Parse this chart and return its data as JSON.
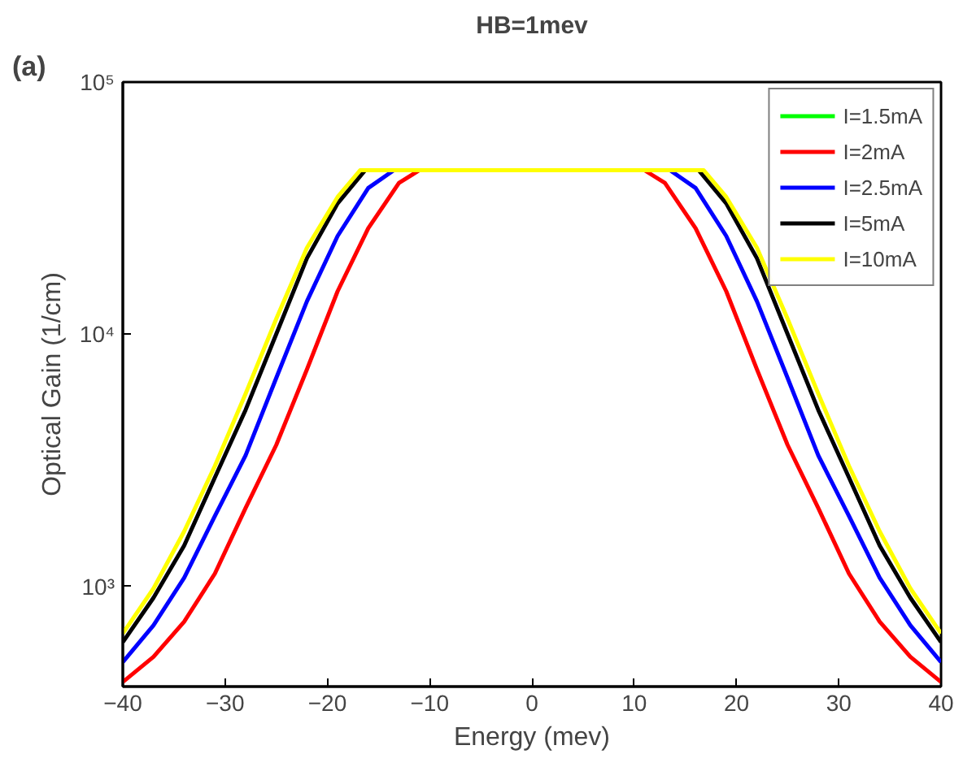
{
  "chart_data": {
    "type": "line",
    "title": "HB=1mev",
    "xlabel": "Energy (mev)",
    "ylabel": "Optical Gain (1/cm)",
    "annotations": [
      "(a)"
    ],
    "log": "y",
    "xlim": [
      -40,
      40
    ],
    "ylim": [
      400,
      100000
    ],
    "xticks": [
      -40,
      -30,
      -20,
      -10,
      0,
      10,
      20,
      30,
      40
    ],
    "yticks": [
      {
        "value": 1000,
        "label": "10³"
      },
      {
        "value": 10000,
        "label": "10⁴"
      },
      {
        "value": 100000,
        "label": "10⁵"
      }
    ],
    "grid": false,
    "legend": "top right",
    "marker": "none",
    "line_style": "solid",
    "series": [
      {
        "name": "I=1.5mA",
        "color": "#00ff00"
      },
      {
        "name": "I=2mA",
        "color": "#ff0000",
        "x": [
          -40,
          -37,
          -34,
          -31,
          -28,
          -25,
          -22,
          -19,
          -16,
          -13,
          -11,
          11,
          13,
          16,
          19,
          22,
          25,
          28,
          31,
          34,
          37,
          40
        ],
        "values": [
          417,
          525,
          724,
          1122,
          2042,
          3631,
          7244,
          14790,
          26300,
          39800,
          44700,
          44700,
          39800,
          26300,
          14790,
          7244,
          3631,
          2042,
          1122,
          724,
          525,
          417
        ]
      },
      {
        "name": "I=2.5mA",
        "color": "#0000ff",
        "x": [
          -40,
          -37,
          -34,
          -31,
          -28,
          -25,
          -22,
          -19,
          -16,
          -13.5,
          13.5,
          16,
          19,
          22,
          25,
          28,
          31,
          34,
          37,
          40
        ],
        "values": [
          500,
          700,
          1080,
          1900,
          3300,
          6700,
          13500,
          24500,
          38000,
          44700,
          44700,
          38000,
          24500,
          13500,
          6700,
          3300,
          1900,
          1080,
          700,
          500
        ]
      },
      {
        "name": "I=5mA",
        "color": "#000000",
        "x": [
          -40,
          -37,
          -34,
          -31,
          -28,
          -25,
          -22,
          -19,
          -16.3,
          16.3,
          19,
          22,
          25,
          28,
          31,
          34,
          37,
          40
        ],
        "values": [
          600,
          900,
          1450,
          2700,
          5000,
          10000,
          20000,
          33000,
          44700,
          44700,
          33000,
          20000,
          10000,
          5000,
          2700,
          1450,
          900,
          600
        ]
      },
      {
        "name": "I=10mA",
        "color": "#ffff00",
        "x": [
          -40,
          -37,
          -34,
          -31,
          -28,
          -25,
          -22,
          -19,
          -16.8,
          16.8,
          19,
          22,
          25,
          28,
          31,
          34,
          37,
          40
        ],
        "values": [
          650,
          980,
          1650,
          3000,
          5800,
          11500,
          22000,
          35000,
          44700,
          44700,
          35000,
          22000,
          11500,
          5800,
          3000,
          1650,
          980,
          650
        ]
      }
    ]
  }
}
